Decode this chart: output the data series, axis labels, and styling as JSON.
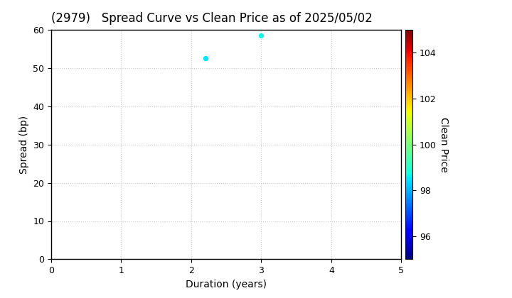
{
  "title": "(2979)   Spread Curve vs Clean Price as of 2025/05/02",
  "xlabel": "Duration (years)",
  "ylabel": "Spread (bp)",
  "colorbar_label": "Clean Price",
  "xlim": [
    0,
    5
  ],
  "ylim": [
    0,
    60
  ],
  "xticks": [
    0,
    1,
    2,
    3,
    4,
    5
  ],
  "yticks": [
    0,
    10,
    20,
    30,
    40,
    50,
    60
  ],
  "cbar_ticks": [
    96,
    98,
    100,
    102,
    104
  ],
  "cbar_vmin": 95,
  "cbar_vmax": 105,
  "points": [
    {
      "duration": 2.2,
      "spread": 52.5,
      "clean_price": 98.5
    },
    {
      "duration": 3.0,
      "spread": 58.5,
      "clean_price": 98.7
    }
  ],
  "background_color": "#ffffff",
  "grid_color": "#cccccc",
  "grid_style": "dotted",
  "title_fontsize": 12,
  "axis_label_fontsize": 10,
  "tick_fontsize": 9,
  "marker_size": 18,
  "colormap": "jet"
}
